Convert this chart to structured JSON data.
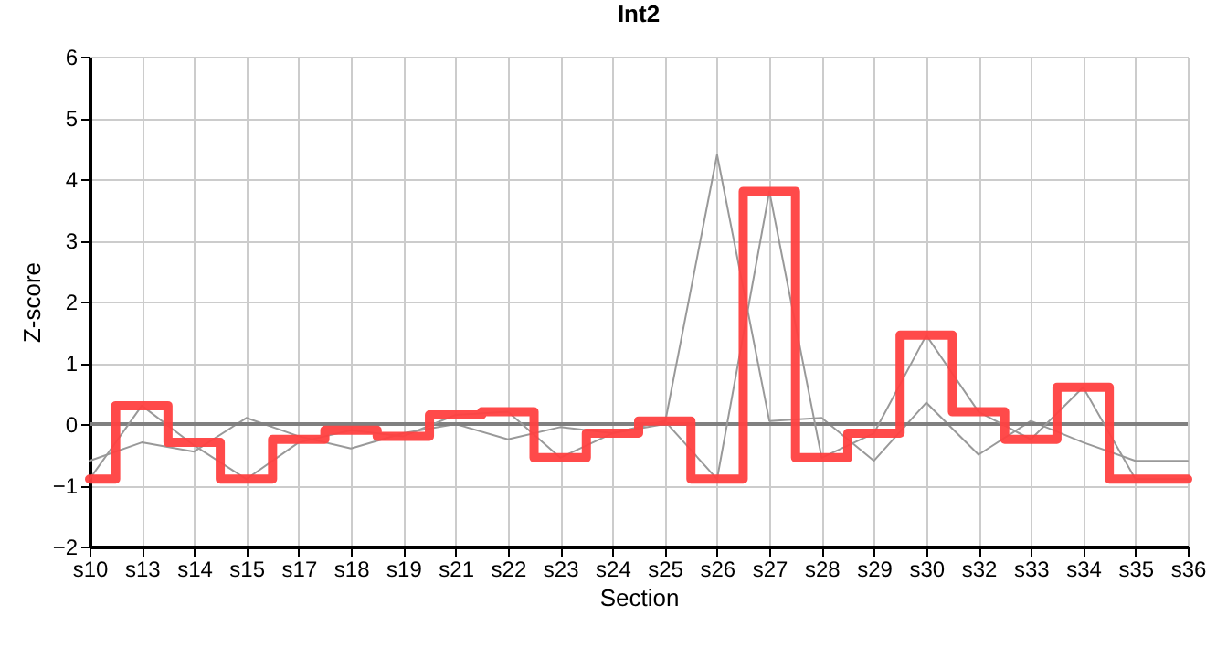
{
  "chart_data": {
    "type": "line",
    "title": "Int2",
    "xlabel": "Section",
    "ylabel": "Z-score",
    "categories": [
      "s10",
      "s13",
      "s14",
      "s15",
      "s17",
      "s18",
      "s19",
      "s21",
      "s22",
      "s23",
      "s24",
      "s25",
      "s26",
      "s27",
      "s28",
      "s29",
      "s30",
      "s32",
      "s33",
      "s34",
      "s35",
      "s36"
    ],
    "series": [
      {
        "type": "line",
        "color": "#999999",
        "values": [
          -0.6,
          -0.3,
          -0.45,
          0.1,
          -0.2,
          -0.4,
          -0.15,
          0.0,
          -0.25,
          -0.05,
          -0.15,
          0.0,
          4.4,
          0.05,
          0.1,
          -0.6,
          0.35,
          -0.5,
          0.05,
          -0.3,
          -0.6,
          -0.6
        ]
      },
      {
        "type": "line",
        "color": "#999999",
        "values": [
          -0.9,
          0.3,
          -0.35,
          -0.9,
          -0.3,
          -0.1,
          -0.2,
          0.15,
          0.2,
          -0.55,
          -0.15,
          0.05,
          -0.9,
          3.8,
          -0.55,
          -0.15,
          1.45,
          0.2,
          -0.25,
          0.6,
          -0.9,
          -0.9
        ]
      },
      {
        "type": "step",
        "color": "#ff4040",
        "values": [
          -0.9,
          0.3,
          -0.3,
          -0.9,
          -0.25,
          -0.1,
          -0.2,
          0.15,
          0.2,
          -0.55,
          -0.15,
          0.05,
          -0.9,
          3.8,
          -0.55,
          -0.15,
          1.45,
          0.2,
          -0.25,
          0.6,
          -0.9,
          -0.9
        ]
      }
    ],
    "ylim": [
      -2,
      6
    ],
    "yticks": [
      -2,
      -1,
      0,
      1,
      2,
      3,
      4,
      5,
      6
    ],
    "ref_lines": [
      {
        "axis": "y",
        "value": 0,
        "color": "#808080"
      }
    ],
    "grid": true
  }
}
